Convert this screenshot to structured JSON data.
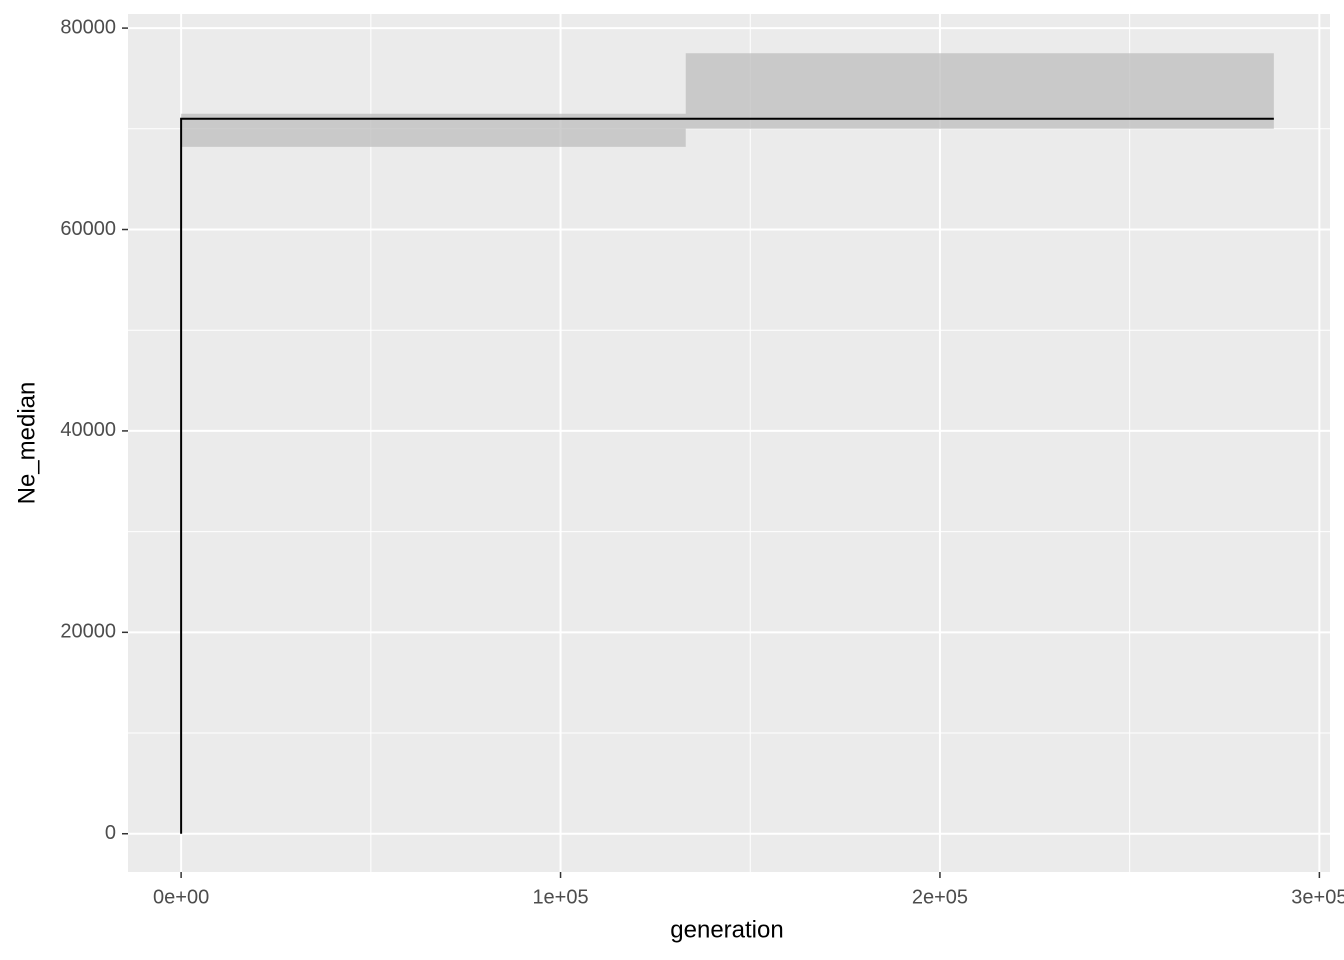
{
  "chart_data": {
    "type": "line",
    "x_label": "generation",
    "y_label": "Ne_median",
    "x": [
      0,
      0,
      288000
    ],
    "series": [
      {
        "name": "Ne_median",
        "color": "#000000",
        "values": [
          0,
          71000,
          71000
        ]
      }
    ],
    "band": {
      "color": "#bebebe",
      "x": [
        0,
        133000,
        133000,
        288000
      ],
      "lower": [
        68200,
        68200,
        70000,
        70000
      ],
      "upper": [
        71500,
        71500,
        77500,
        77500
      ]
    },
    "xlim": [
      -14000,
      302800
    ],
    "ylim": [
      -3800,
      81400
    ],
    "xticks": [
      {
        "value": 0,
        "label": "0e+00"
      },
      {
        "value": 100000,
        "label": "1e+05"
      },
      {
        "value": 200000,
        "label": "2e+05"
      },
      {
        "value": 300000,
        "label": "3e+05"
      }
    ],
    "yticks": [
      0,
      20000,
      40000,
      60000,
      80000
    ],
    "grid": true
  }
}
